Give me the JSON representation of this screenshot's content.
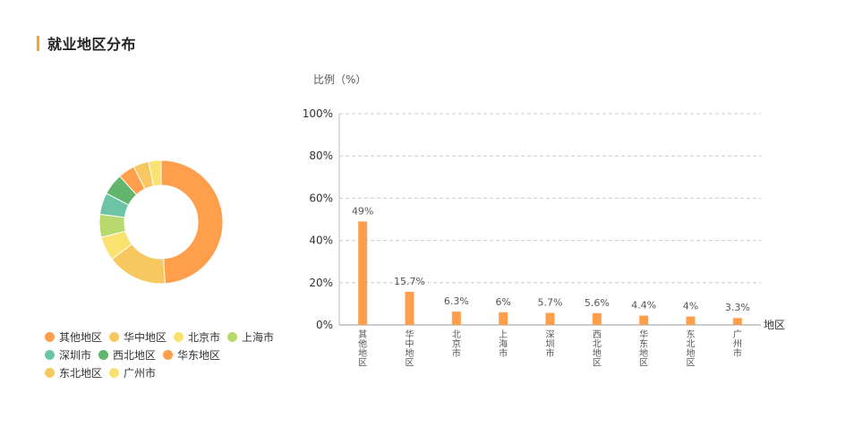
{
  "section": {
    "title": "就业地区分布"
  },
  "chart_data": [
    {
      "type": "pie",
      "variant": "donut",
      "categories": [
        "其他地区",
        "华中地区",
        "北京市",
        "上海市",
        "深圳市",
        "西北地区",
        "华东地区",
        "东北地区",
        "广州市"
      ],
      "values": [
        49,
        15.7,
        6.3,
        6,
        5.7,
        5.6,
        4.4,
        4,
        3.3
      ],
      "colors": [
        "#ff9f4b",
        "#f6c85f",
        "#f9e26f",
        "#b7d96e",
        "#6cc4a5",
        "#63b46c",
        "#ff9f4b",
        "#f6c85f",
        "#f9e26f"
      ],
      "legend": "bottom"
    },
    {
      "type": "bar",
      "categories": [
        "其他地区",
        "华中地区",
        "北京市",
        "上海市",
        "深圳市",
        "西北地区",
        "华东地区",
        "东北地区",
        "广州市"
      ],
      "values": [
        49,
        15.7,
        6.3,
        6,
        5.7,
        5.6,
        4.4,
        4,
        3.3
      ],
      "data_labels": [
        "49%",
        "15.7%",
        "6.3%",
        "6%",
        "5.7%",
        "5.6%",
        "4.4%",
        "4%",
        "3.3%"
      ],
      "ylabel": "比例（%）",
      "xlabel": "地区",
      "ylim": [
        0,
        100
      ],
      "yticks": [
        0,
        20,
        40,
        60,
        80,
        100
      ],
      "ytick_labels": [
        "0%",
        "20%",
        "40%",
        "60%",
        "80%",
        "100%"
      ],
      "grid": true,
      "bar_color": "#ff9f4b"
    }
  ]
}
